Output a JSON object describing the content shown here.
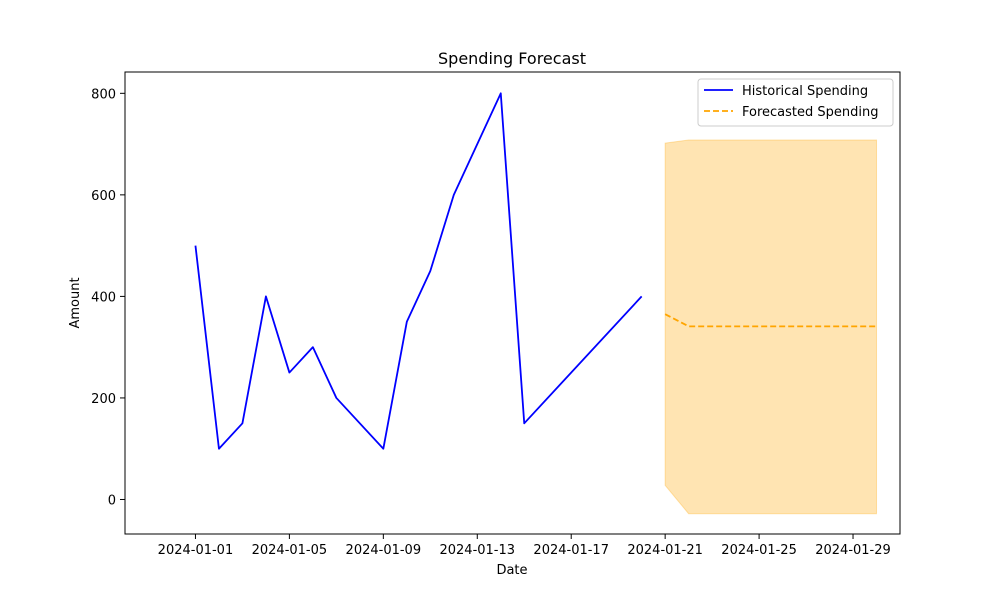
{
  "chart_data": {
    "type": "line",
    "title": "Spending Forecast",
    "xlabel": "Date",
    "ylabel": "Amount",
    "xlim": [
      "2023-12-29",
      "2024-01-31"
    ],
    "ylim": [
      -68,
      842
    ],
    "x_ticks": [
      "2024-01-01",
      "2024-01-05",
      "2024-01-09",
      "2024-01-13",
      "2024-01-17",
      "2024-01-21",
      "2024-01-25",
      "2024-01-29"
    ],
    "y_ticks": [
      0,
      200,
      400,
      600,
      800
    ],
    "grid": false,
    "legend_position": "top-right",
    "series": [
      {
        "name": "Historical Spending",
        "color": "#0000ff",
        "style": "solid",
        "x": [
          "2024-01-01",
          "2024-01-02",
          "2024-01-03",
          "2024-01-04",
          "2024-01-05",
          "2024-01-06",
          "2024-01-07",
          "2024-01-09",
          "2024-01-10",
          "2024-01-11",
          "2024-01-12",
          "2024-01-14",
          "2024-01-15",
          "2024-01-20"
        ],
        "values": [
          500,
          100,
          150,
          400,
          250,
          300,
          200,
          100,
          350,
          450,
          600,
          800,
          150,
          400
        ]
      },
      {
        "name": "Forecasted Spending",
        "color": "#ffa500",
        "style": "dashed",
        "x": [
          "2024-01-21",
          "2024-01-22",
          "2024-01-23",
          "2024-01-24",
          "2024-01-25",
          "2024-01-26",
          "2024-01-27",
          "2024-01-28",
          "2024-01-29",
          "2024-01-30"
        ],
        "values": [
          365,
          341,
          341,
          341,
          341,
          341,
          341,
          341,
          341,
          341
        ]
      }
    ],
    "confidence_band": {
      "color": "#ffa500",
      "x": [
        "2024-01-21",
        "2024-01-22",
        "2024-01-23",
        "2024-01-24",
        "2024-01-25",
        "2024-01-26",
        "2024-01-27",
        "2024-01-28",
        "2024-01-29",
        "2024-01-30"
      ],
      "lower": [
        28,
        -28,
        -28,
        -28,
        -28,
        -28,
        -28,
        -28,
        -28,
        -28
      ],
      "upper": [
        702,
        708,
        708,
        708,
        708,
        708,
        708,
        708,
        708,
        708
      ]
    }
  }
}
